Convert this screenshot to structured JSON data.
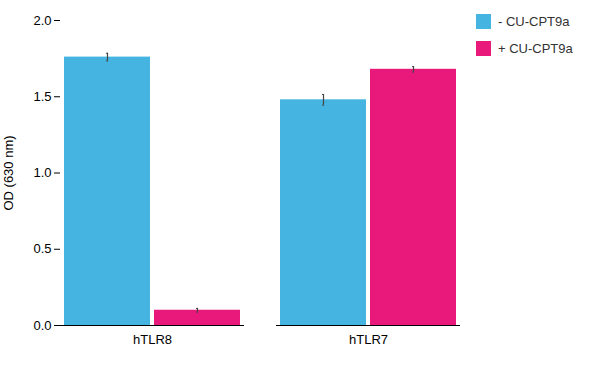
{
  "chart_data": {
    "type": "bar",
    "categories": [
      "hTLR8",
      "hTLR7"
    ],
    "series": [
      {
        "name": "- CU-CPT9a",
        "color": "#45B4E0",
        "values": [
          1.76,
          1.48
        ],
        "errors": [
          0.025,
          0.035
        ]
      },
      {
        "name": "+ CU-CPT9a",
        "color": "#E8197A",
        "values": [
          0.1,
          1.68
        ],
        "errors": [
          0.012,
          0.018
        ]
      }
    ],
    "ylabel": "OD (630 nm)",
    "ylim": [
      0.0,
      2.0
    ],
    "yticks": [
      {
        "value": 0.0,
        "label": "0.0"
      },
      0.5,
      {
        "value": 1.0,
        "label": "1.0"
      },
      1.5,
      {
        "value": 2.0,
        "label": "2.0"
      }
    ],
    "grid": false,
    "legend": "right"
  }
}
